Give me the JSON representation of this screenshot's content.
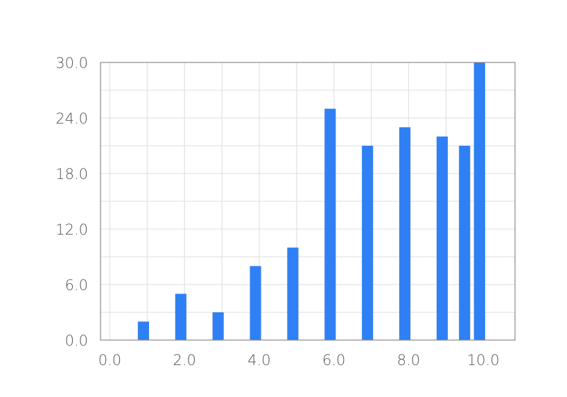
{
  "chart_data": {
    "type": "bar",
    "title": "",
    "xlabel": "",
    "ylabel": "",
    "xlim": [
      -0.25,
      10.85
    ],
    "ylim": [
      0,
      30
    ],
    "grid": true,
    "x_ticks": [
      0,
      2,
      4,
      6,
      8,
      10
    ],
    "x_tick_labels": [
      "0.0",
      "2.0",
      "4.0",
      "6.0",
      "8.0",
      "10.0"
    ],
    "y_ticks": [
      0,
      6,
      12,
      18,
      24,
      30
    ],
    "y_tick_labels": [
      "0.0",
      "6.0",
      "12.0",
      "18.0",
      "24.0",
      "30.0"
    ],
    "x_minor_grid": [
      1,
      3,
      5,
      7,
      9
    ],
    "y_minor_grid": [
      3,
      9,
      15,
      21,
      27
    ],
    "bar_width": 0.3,
    "x": [
      0.9,
      1.9,
      2.9,
      3.9,
      4.9,
      5.9,
      6.9,
      7.9,
      8.9,
      9.5,
      9.9
    ],
    "values": [
      2,
      5,
      3,
      8,
      10,
      25,
      21,
      23,
      22,
      21,
      30
    ],
    "bar_color": "#2f80f4",
    "grid_color": "#e3e3e3",
    "axis_color": "#888888"
  }
}
